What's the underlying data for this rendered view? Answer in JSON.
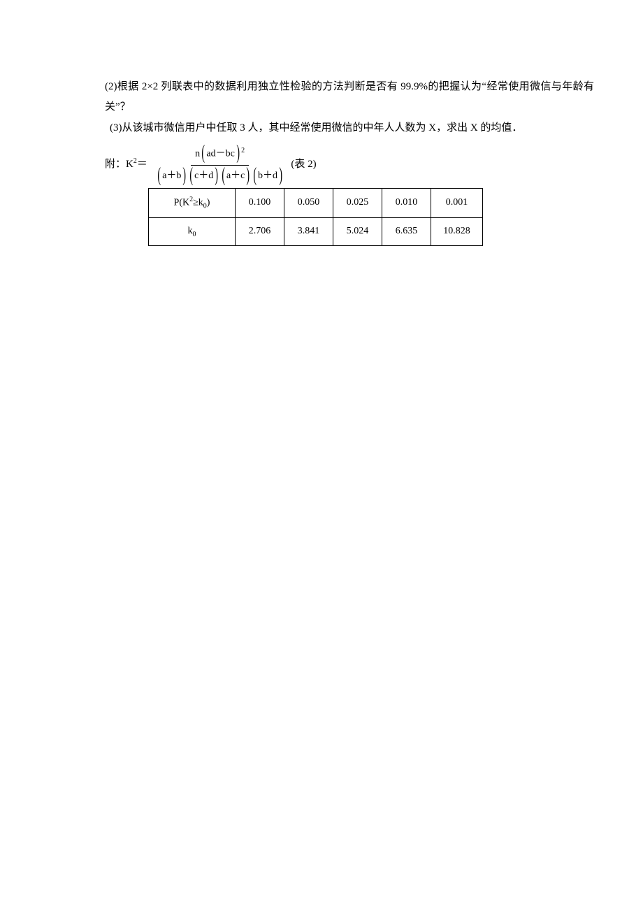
{
  "q2": "(2)根据 2×2 列联表中的数据利用独立性检验的方法判断是否有 99.9%的把握认为“经常使用微信与年龄有关”？",
  "q3": "(3)从该城市微信用户中任取 3 人，其中经常使用微信的中年人人数为 X，求出 X 的均值．",
  "formula": {
    "prefix": "附：K",
    "sup_after_k": "2",
    "equals": "＝",
    "num_n": "n",
    "num_ad_bc": "ad－bc",
    "num_sq": "2",
    "den_ab": "a＋b",
    "den_cd": "c＋d",
    "den_ac": "a＋c",
    "den_bd": "b＋d",
    "suffix": "(表 2)"
  },
  "table": {
    "rows": [
      {
        "label_prefix": "P(K",
        "label_sup": "2",
        "label_mid": "≥k",
        "label_sub": "0",
        "label_suffix": ")",
        "v1": "0.100",
        "v2": "0.050",
        "v3": "0.025",
        "v4": "0.010",
        "v5": "0.001"
      },
      {
        "label_prefix": "k",
        "label_sup": "",
        "label_mid": "",
        "label_sub": "0",
        "label_suffix": "",
        "v1": "2.706",
        "v2": "3.841",
        "v3": "5.024",
        "v4": "6.635",
        "v5": "10.828"
      }
    ]
  }
}
